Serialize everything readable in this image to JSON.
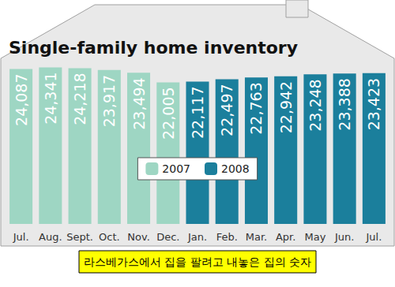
{
  "chart_data": {
    "type": "bar",
    "title": "Single-family home inventory",
    "annotation": "라스베가스에서 집을 팔려고 내놓은 집의 숫자",
    "categories": [
      "Jul.",
      "Aug.",
      "Sept.",
      "Oct.",
      "Nov.",
      "Dec.",
      "Jan.",
      "Feb.",
      "Mar.",
      "Apr.",
      "May",
      "Jun.",
      "Jul."
    ],
    "series": [
      {
        "name": "2007",
        "color": "#9ed6c3",
        "values": [
          24087,
          24341,
          24218,
          23917,
          23494,
          22005,
          null,
          null,
          null,
          null,
          null,
          null,
          null
        ],
        "value_labels": [
          "24,087",
          "24,341",
          "24,218",
          "23,917",
          "23,494",
          "22,005",
          null,
          null,
          null,
          null,
          null,
          null,
          null
        ]
      },
      {
        "name": "2008",
        "color": "#1b7f9c",
        "values": [
          null,
          null,
          null,
          null,
          null,
          null,
          22117,
          22497,
          22763,
          22942,
          23248,
          23388,
          23423
        ],
        "value_labels": [
          null,
          null,
          null,
          null,
          null,
          null,
          "22,117",
          "22,497",
          "22,763",
          "22,942",
          "23,248",
          "23,388",
          "23,423"
        ]
      }
    ],
    "ylim": [
      0,
      25000
    ],
    "tick_labels": "x",
    "data_labels": true,
    "legend": "center",
    "grid": false
  }
}
